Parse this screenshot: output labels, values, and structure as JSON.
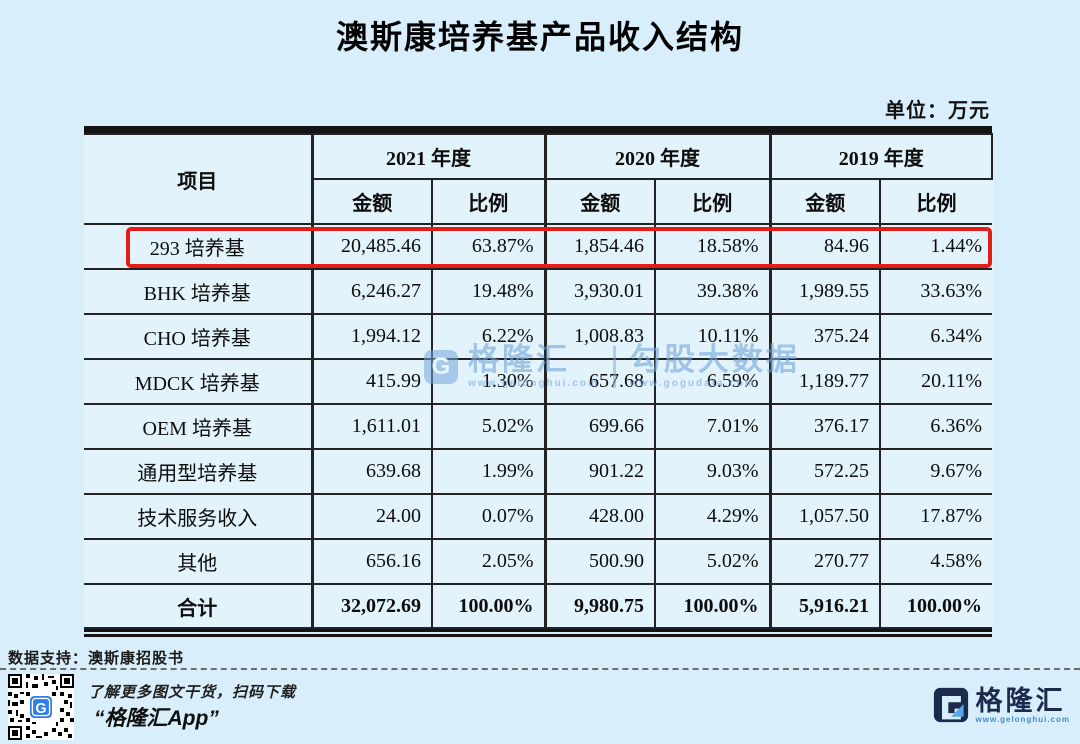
{
  "page": {
    "title": "澳斯康培养基产品收入结构",
    "unit_label": "单位：万元",
    "background_color": "#d8eefa"
  },
  "table": {
    "item_header": "项目",
    "year_groups": [
      "2021 年度",
      "2020 年度",
      "2019 年度"
    ],
    "sub_headers": {
      "amount": "金额",
      "ratio": "比例"
    },
    "rows": [
      {
        "item": "293 培养基",
        "values": [
          "20,485.46",
          "63.87%",
          "1,854.46",
          "18.58%",
          "84.96",
          "1.44%"
        ],
        "highlighted": true
      },
      {
        "item": "BHK 培养基",
        "values": [
          "6,246.27",
          "19.48%",
          "3,930.01",
          "39.38%",
          "1,989.55",
          "33.63%"
        ],
        "highlighted": false
      },
      {
        "item": "CHO 培养基",
        "values": [
          "1,994.12",
          "6.22%",
          "1,008.83",
          "10.11%",
          "375.24",
          "6.34%"
        ],
        "highlighted": false
      },
      {
        "item": "MDCK 培养基",
        "values": [
          "415.99",
          "1.30%",
          "657.68",
          "6.59%",
          "1,189.77",
          "20.11%"
        ],
        "highlighted": false
      },
      {
        "item": "OEM 培养基",
        "values": [
          "1,611.01",
          "5.02%",
          "699.66",
          "7.01%",
          "376.17",
          "6.36%"
        ],
        "highlighted": false
      },
      {
        "item": "通用型培养基",
        "values": [
          "639.68",
          "1.99%",
          "901.22",
          "9.03%",
          "572.25",
          "9.67%"
        ],
        "highlighted": false
      },
      {
        "item": "技术服务收入",
        "values": [
          "24.00",
          "0.07%",
          "428.00",
          "4.29%",
          "1,057.50",
          "17.87%"
        ],
        "highlighted": false
      },
      {
        "item": "其他",
        "values": [
          "656.16",
          "2.05%",
          "500.90",
          "5.02%",
          "270.77",
          "4.58%"
        ],
        "highlighted": false
      }
    ],
    "total_row": {
      "item": "合计",
      "values": [
        "32,072.69",
        "100.00%",
        "9,980.75",
        "100.00%",
        "5,916.21",
        "100.00%"
      ]
    },
    "highlight_color": "#e51c18"
  },
  "watermark": {
    "logo_letter": "G",
    "brand": "格隆汇",
    "brand_url": "www.gelonghui.com",
    "partner": "勾股大数据",
    "partner_url": "www.gogudata.com"
  },
  "footer": {
    "source_label": "数据支持：澳斯康招股书",
    "qr_caption": "了解更多图文干货，扫码下载",
    "app_name": "“格隆汇App”",
    "brand_name": "格隆汇",
    "brand_url": "www.gelonghui.com"
  },
  "icons": {
    "qr_code": "qr-code",
    "watermark_logo": "gelonghui-g-logo",
    "brand_logo": "gelonghui-g-logo"
  }
}
